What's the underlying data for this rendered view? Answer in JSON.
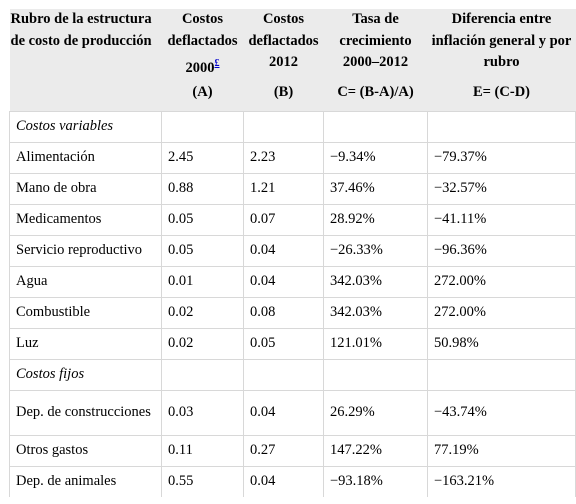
{
  "headers": [
    "Rubro de la estructura de costo de producción",
    "Costos deflactados 2000",
    "Costos deflactados 2012",
    "Tasa de crecimiento 2000–2012",
    "Diferencia entre inflación general y por rubro"
  ],
  "header_footnote": "£",
  "formulas": [
    "",
    "(A)",
    "(B)",
    "C= (B-A)/A)",
    "E= (C-D)"
  ],
  "rows": [
    {
      "type": "section",
      "label": "Costos variables"
    },
    {
      "type": "data",
      "cells": [
        "Alimentación",
        "2.45",
        "2.23",
        "−9.34%",
        "−79.37%"
      ]
    },
    {
      "type": "data",
      "cells": [
        "Mano de obra",
        "0.88",
        "1.21",
        "37.46%",
        "−32.57%"
      ]
    },
    {
      "type": "data",
      "cells": [
        "Medicamentos",
        "0.05",
        "0.07",
        "28.92%",
        "−41.11%"
      ]
    },
    {
      "type": "data",
      "cells": [
        "Servicio reproductivo",
        "0.05",
        "0.04",
        "−26.33%",
        "−96.36%"
      ]
    },
    {
      "type": "data",
      "cells": [
        "Agua",
        "0.01",
        "0.04",
        "342.03%",
        "272.00%"
      ]
    },
    {
      "type": "data",
      "cells": [
        "Combustible",
        "0.02",
        "0.08",
        "342.03%",
        "272.00%"
      ]
    },
    {
      "type": "data",
      "cells": [
        "Luz",
        "0.02",
        "0.05",
        "121.01%",
        "50.98%"
      ]
    },
    {
      "type": "section",
      "label": "Costos fijos"
    },
    {
      "type": "data",
      "cells": [
        "Dep. de construcciones",
        "0.03",
        "0.04",
        "26.29%",
        "−43.74%"
      ]
    },
    {
      "type": "data",
      "cells": [
        "Otros gastos",
        "0.11",
        "0.27",
        "147.22%",
        "77.19%"
      ]
    },
    {
      "type": "data",
      "cells": [
        "Dep. de animales",
        "0.55",
        "0.04",
        "−93.18%",
        "−163.21%"
      ]
    }
  ]
}
